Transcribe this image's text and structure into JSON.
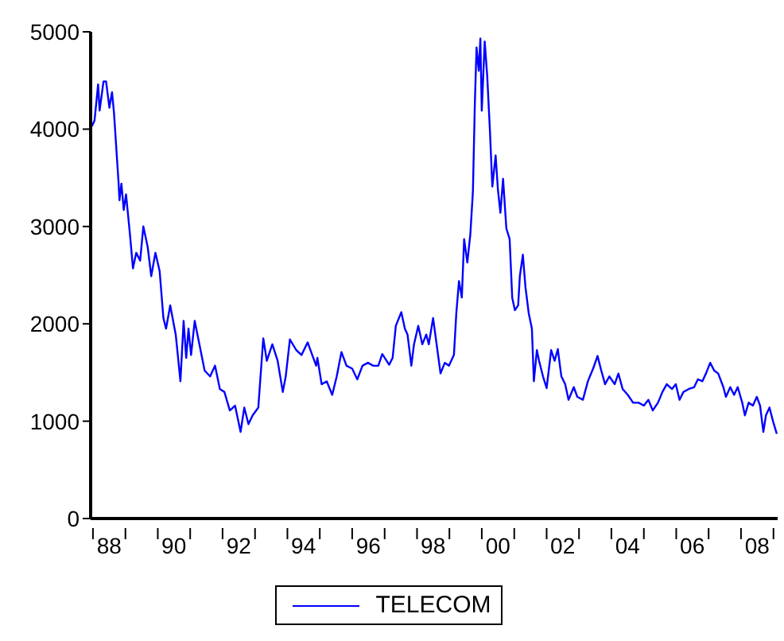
{
  "chart_data": {
    "type": "line",
    "xlim": [
      "1987-12-06",
      "2009-02-17"
    ],
    "ylim": [
      0,
      5000
    ],
    "yticks": [
      0,
      1000,
      2000,
      3000,
      4000,
      5000
    ],
    "xticks": [
      {
        "value": "1988",
        "label": null
      },
      {
        "value": "1988-07-01",
        "label": "88"
      },
      {
        "value": "1989",
        "label": null
      },
      {
        "value": "1990",
        "label": null
      },
      {
        "value": "1990-07-01",
        "label": "90"
      },
      {
        "value": "1991",
        "label": null
      },
      {
        "value": "1992",
        "label": null
      },
      {
        "value": "1992-07-01",
        "label": "92"
      },
      {
        "value": "1993",
        "label": null
      },
      {
        "value": "1994",
        "label": null
      },
      {
        "value": "1994-07-01",
        "label": "94"
      },
      {
        "value": "1995",
        "label": null
      },
      {
        "value": "1996",
        "label": null
      },
      {
        "value": "1996-07-01",
        "label": "96"
      },
      {
        "value": "1997",
        "label": null
      },
      {
        "value": "1998",
        "label": null
      },
      {
        "value": "1998-07-01",
        "label": "98"
      },
      {
        "value": "1999",
        "label": null
      },
      {
        "value": "2000",
        "label": null
      },
      {
        "value": "2000-07-01",
        "label": "00"
      },
      {
        "value": "2001",
        "label": null
      },
      {
        "value": "2002",
        "label": null
      },
      {
        "value": "2002-07-01",
        "label": "02"
      },
      {
        "value": "2003",
        "label": null
      },
      {
        "value": "2004",
        "label": null
      },
      {
        "value": "2004-07-01",
        "label": "04"
      },
      {
        "value": "2005",
        "label": null
      },
      {
        "value": "2006",
        "label": null
      },
      {
        "value": "2006-07-01",
        "label": "06"
      },
      {
        "value": "2007",
        "label": null
      },
      {
        "value": "2008",
        "label": null
      },
      {
        "value": "2008-07-01",
        "label": "08"
      },
      {
        "value": "2009",
        "label": null
      }
    ],
    "legend": "bottom",
    "marker": "none",
    "line_style": "solid",
    "series": [
      {
        "name": "TELECOM",
        "color": "#0000ff",
        "x": [
          "1987-12-20",
          "1988-01-19",
          "1988-02-28",
          "1988-03-16",
          "1988-04-29",
          "1988-05-28",
          "1988-07-04",
          "1988-08-03",
          "1988-08-25",
          "1988-10-15",
          "1988-10-26",
          "1988-11-17",
          "1988-12-13",
          "1989-01-08",
          "1989-02-21",
          "1989-03-27",
          "1989-05-03",
          "1989-06-16",
          "1989-07-22",
          "1989-09-09",
          "1989-10-19",
          "1989-12-05",
          "1990-01-22",
          "1990-03-05",
          "1990-04-04",
          "1990-05-21",
          "1990-07-22",
          "1990-08-21",
          "1990-09-13",
          "1990-10-19",
          "1990-11-17",
          "1990-12-13",
          "1991-01-11",
          "1991-02-21",
          "1991-04-15",
          "1991-06-13",
          "1991-08-14",
          "1991-10-08",
          "1991-12-02",
          "1992-01-22",
          "1992-03-23",
          "1992-05-21",
          "1992-07-22",
          "1992-09-02",
          "1992-10-19",
          "1992-12-05",
          "1993-02-07",
          "1993-02-28",
          "1993-04-04",
          "1993-05-14",
          "1993-07-15",
          "1993-09-13",
          "1993-11-10",
          "1993-12-13",
          "1994-01-29",
          "1994-04-11",
          "1994-06-09",
          "1994-08-17",
          "1994-10-08",
          "1994-11-21",
          "1994-12-05",
          "1995-01-22",
          "1995-03-20",
          "1995-05-21",
          "1995-07-11",
          "1995-09-02",
          "1995-10-29",
          "1996-01-01",
          "1996-02-28",
          "1996-04-26",
          "1996-06-27",
          "1996-08-25",
          "1996-10-22",
          "1996-12-05",
          "1997-02-21",
          "1997-04-01",
          "1997-05-07",
          "1997-07-08",
          "1997-08-17",
          "1997-09-16",
          "1997-10-29",
          "1997-11-28",
          "1998-01-15",
          "1998-03-02",
          "1998-04-15",
          "1998-05-14",
          "1998-07-01",
          "1998-08-10",
          "1998-09-23",
          "1998-11-10",
          "1998-12-27",
          "1999-02-21",
          "1999-03-20",
          "1999-04-19",
          "1999-05-21",
          "1999-06-16",
          "1999-07-22",
          "1999-08-25",
          "1999-09-23",
          "1999-10-15",
          "1999-11-03",
          "1999-11-28",
          "1999-12-16",
          "2000-01-01",
          "2000-02-03",
          "2000-03-02",
          "2000-04-01",
          "2000-04-29",
          "2000-06-05",
          "2000-07-01",
          "2000-07-29",
          "2000-08-28",
          "2000-10-04",
          "2000-11-10",
          "2000-12-09",
          "2001-01-08",
          "2001-02-14",
          "2001-03-05",
          "2001-04-08",
          "2001-05-07",
          "2001-06-13",
          "2001-07-19",
          "2001-08-10",
          "2001-09-13",
          "2001-10-08",
          "2001-11-21",
          "2002-01-01",
          "2002-02-21",
          "2002-04-01",
          "2002-05-07",
          "2002-06-16",
          "2002-07-29",
          "2002-09-05",
          "2002-11-03",
          "2002-12-13",
          "2003-02-14",
          "2003-04-11",
          "2003-06-09",
          "2003-07-29",
          "2003-09-09",
          "2003-10-22",
          "2003-12-09",
          "2004-02-07",
          "2004-03-20",
          "2004-05-07",
          "2004-07-04",
          "2004-09-02",
          "2004-11-03",
          "2005-01-01",
          "2005-02-21",
          "2005-04-11",
          "2005-06-09",
          "2005-07-29",
          "2005-09-16",
          "2005-11-14",
          "2005-12-27",
          "2006-02-07",
          "2006-03-23",
          "2006-05-21",
          "2006-07-22",
          "2006-09-02",
          "2006-10-22",
          "2006-12-02",
          "2007-01-19",
          "2007-03-05",
          "2007-04-19",
          "2007-06-16",
          "2007-07-15",
          "2007-09-02",
          "2007-10-15",
          "2007-11-25",
          "2008-01-15",
          "2008-02-14",
          "2008-03-27",
          "2008-05-14",
          "2008-06-27",
          "2008-08-03",
          "2008-09-09",
          "2008-10-08",
          "2008-11-17",
          "2008-12-27",
          "2009-02-07"
        ],
        "values": [
          4030,
          4090,
          4460,
          4190,
          4490,
          4490,
          4220,
          4380,
          4170,
          3460,
          3270,
          3440,
          3170,
          3330,
          2920,
          2570,
          2730,
          2650,
          3000,
          2790,
          2490,
          2730,
          2540,
          2060,
          1950,
          2190,
          1890,
          1620,
          1410,
          2030,
          1650,
          1950,
          1680,
          2030,
          1790,
          1520,
          1460,
          1570,
          1330,
          1300,
          1110,
          1160,
          890,
          1140,
          970,
          1060,
          1140,
          1410,
          1850,
          1620,
          1790,
          1620,
          1300,
          1460,
          1840,
          1730,
          1680,
          1810,
          1680,
          1570,
          1650,
          1380,
          1410,
          1270,
          1460,
          1710,
          1570,
          1540,
          1430,
          1570,
          1600,
          1570,
          1570,
          1690,
          1580,
          1650,
          1980,
          2120,
          1950,
          1890,
          1570,
          1790,
          1980,
          1790,
          1890,
          1790,
          2060,
          1790,
          1490,
          1600,
          1570,
          1680,
          2110,
          2440,
          2270,
          2870,
          2630,
          2920,
          3360,
          4270,
          4840,
          4600,
          4930,
          4190,
          4900,
          4550,
          4000,
          3410,
          3730,
          3380,
          3140,
          3490,
          2980,
          2870,
          2270,
          2140,
          2190,
          2490,
          2710,
          2380,
          2110,
          1950,
          1410,
          1730,
          1620,
          1460,
          1340,
          1730,
          1620,
          1740,
          1460,
          1380,
          1220,
          1350,
          1250,
          1220,
          1410,
          1540,
          1670,
          1520,
          1380,
          1460,
          1380,
          1490,
          1330,
          1270,
          1190,
          1190,
          1160,
          1220,
          1110,
          1190,
          1300,
          1380,
          1330,
          1380,
          1220,
          1300,
          1330,
          1350,
          1430,
          1410,
          1490,
          1600,
          1520,
          1490,
          1350,
          1250,
          1350,
          1270,
          1350,
          1190,
          1060,
          1190,
          1160,
          1250,
          1160,
          890,
          1060,
          1140,
          1000,
          870
        ]
      }
    ]
  }
}
